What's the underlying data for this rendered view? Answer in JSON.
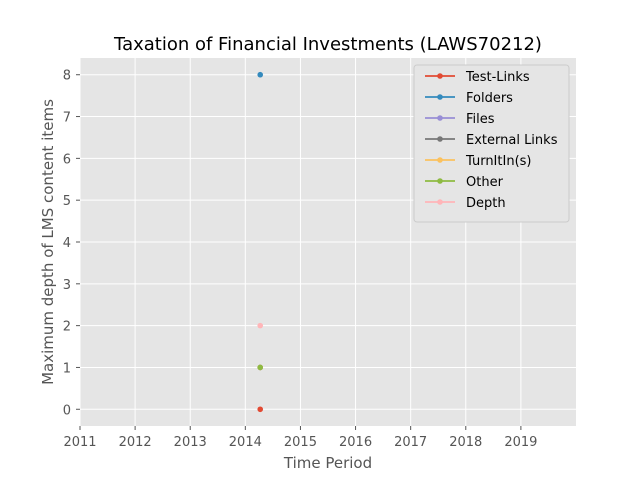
{
  "chart_data": {
    "type": "line",
    "title": "Taxation of Financial Investments (LAWS70212)",
    "xlabel": "Time Period",
    "ylabel": "Maximum depth of LMS content items",
    "xlim": [
      2011,
      2020
    ],
    "ylim": [
      -0.4,
      8.4
    ],
    "x_ticks": [
      "2011",
      "2012",
      "2013",
      "2014",
      "2015",
      "2016",
      "2017",
      "2018",
      "2019"
    ],
    "y_ticks": [
      "0",
      "1",
      "2",
      "3",
      "4",
      "5",
      "6",
      "7",
      "8"
    ],
    "grid": true,
    "legend_position": "top-right",
    "series": [
      {
        "name": "Test-Links",
        "color": "#E24A33",
        "x": [
          2014.27
        ],
        "y": [
          0
        ]
      },
      {
        "name": "Folders",
        "color": "#348ABD",
        "x": [
          2014.27
        ],
        "y": [
          8
        ]
      },
      {
        "name": "Files",
        "color": "#988ED5",
        "x": [
          2014.27
        ],
        "y": [
          1
        ]
      },
      {
        "name": "External Links",
        "color": "#777777",
        "x": [
          2014.27
        ],
        "y": [
          1
        ]
      },
      {
        "name": "TurnItIn(s)",
        "color": "#FBC15E",
        "x": [
          2014.27
        ],
        "y": [
          1
        ]
      },
      {
        "name": "Other",
        "color": "#8EBA42",
        "x": [
          2014.27
        ],
        "y": [
          1
        ]
      },
      {
        "name": "Depth",
        "color": "#FFB5B8",
        "x": [
          2014.27
        ],
        "y": [
          2
        ]
      }
    ]
  }
}
